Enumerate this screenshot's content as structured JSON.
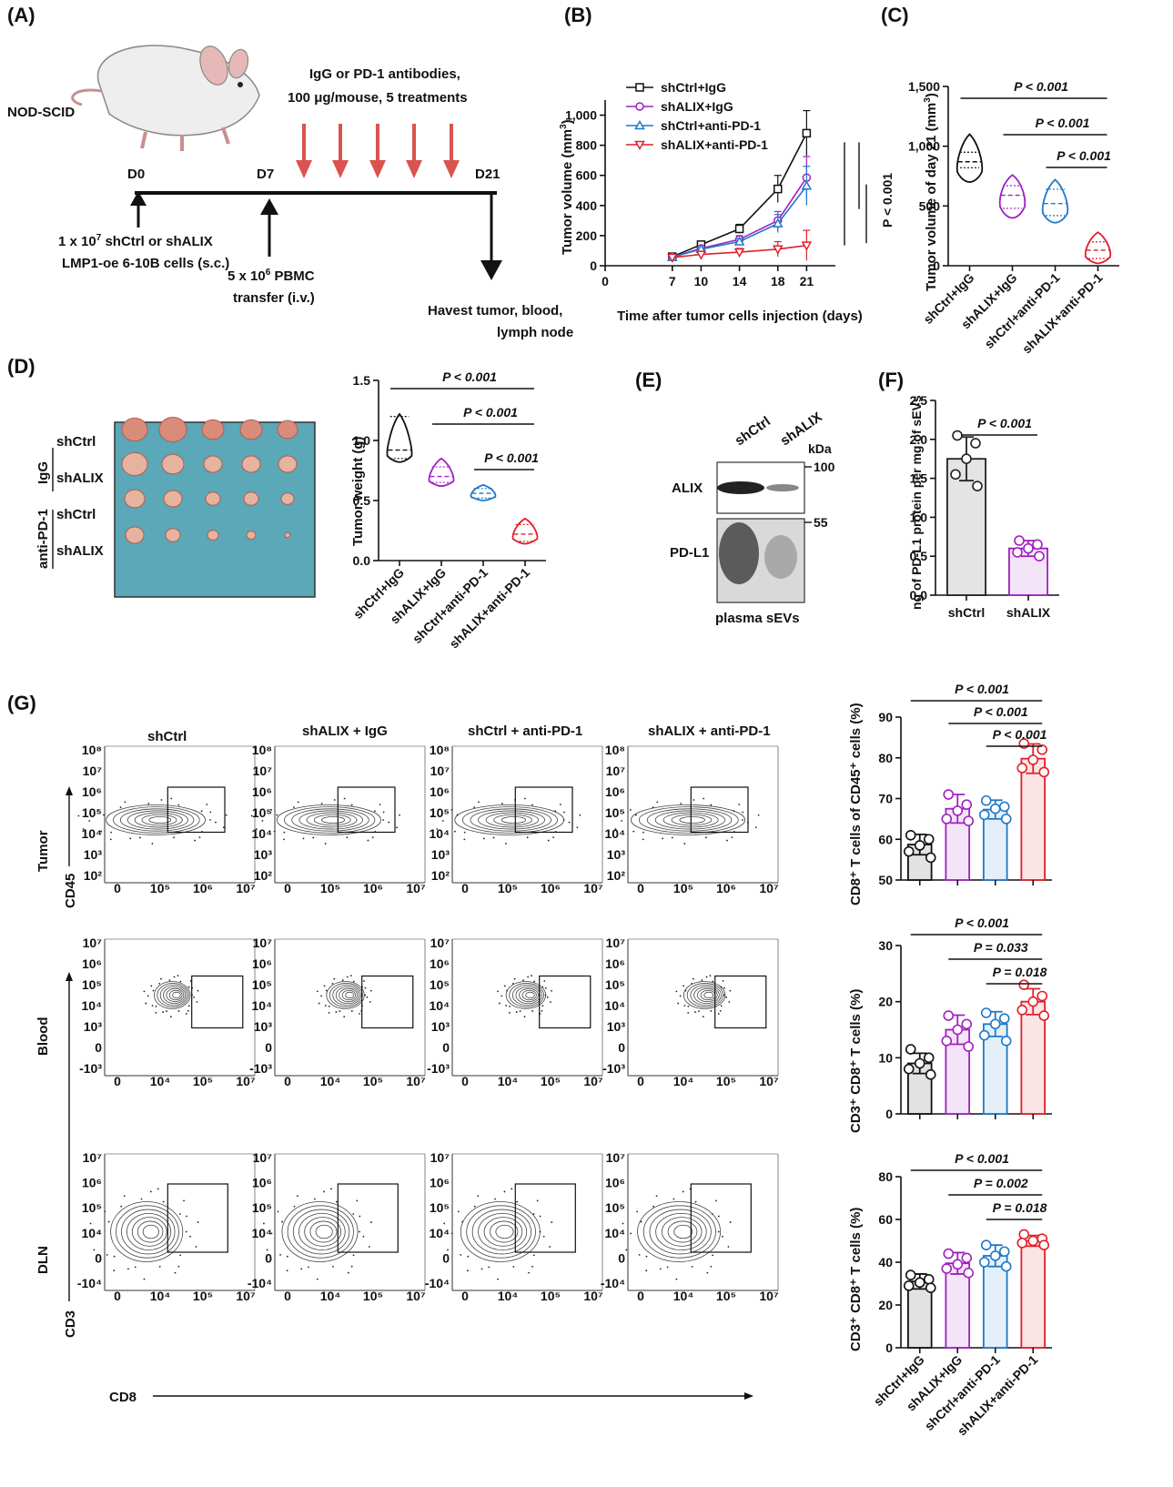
{
  "panels": {
    "A": "(A)",
    "B": "(B)",
    "C": "(C)",
    "D": "(D)",
    "E": "(E)",
    "F": "(F)",
    "G": "(G)"
  },
  "colors": {
    "shCtrl+IgG": "#111111",
    "shALIX+IgG": "#a020c0",
    "shCtrl+anti-PD-1": "#1f78c8",
    "shALIX+anti-PD-1": "#e0202a",
    "treatment_arrow": "#d9534f"
  },
  "schematic": {
    "strain": "NOD-SCID",
    "treatment": [
      "IgG or PD-1 antibodies,",
      "100 μg/mouse, 5 treatments"
    ],
    "days": [
      "D0",
      "D7",
      "D21"
    ],
    "d0_text": [
      "1 x 10",
      "7",
      " shCtrl or shALIX",
      "LMP1-oe 6-10B cells (s.c.)"
    ],
    "d7_text": [
      "5 x 10",
      "6",
      " PBMC",
      "transfer (i.v.)"
    ],
    "d21_text": [
      "Havest tumor, blood,",
      "lymph node"
    ]
  },
  "chart_data": [
    {
      "panel": "B",
      "type": "line",
      "x": [
        7,
        10,
        14,
        18,
        21
      ],
      "xticks": [
        0,
        7,
        10,
        14,
        18,
        21
      ],
      "yticks": [
        "0",
        "200",
        "400",
        "600",
        "800",
        "1,000"
      ],
      "xlim": [
        0,
        24
      ],
      "ylim": [
        0,
        1100
      ],
      "xlabel": "Time  after tumor cells injection (days)",
      "ylabel": "Tumor volume (mm³)",
      "annotation": "P < 0.001",
      "series": [
        {
          "name": "shCtrl+IgG",
          "marker": "square",
          "values": [
            60,
            140,
            245,
            510,
            880
          ],
          "err": [
            5,
            12,
            30,
            90,
            150
          ]
        },
        {
          "name": "shALIX+IgG",
          "marker": "circle",
          "values": [
            58,
            115,
            175,
            300,
            585
          ],
          "err": [
            5,
            10,
            25,
            60,
            140
          ]
        },
        {
          "name": "shCtrl+anti-PD-1",
          "marker": "triangle-up",
          "values": [
            57,
            110,
            160,
            280,
            530
          ],
          "err": [
            5,
            10,
            20,
            60,
            130
          ]
        },
        {
          "name": "shALIX+anti-PD-1",
          "marker": "triangle-down",
          "values": [
            55,
            75,
            90,
            110,
            135
          ],
          "err": [
            5,
            10,
            25,
            50,
            100
          ]
        }
      ]
    },
    {
      "panel": "C",
      "type": "violin",
      "categories": [
        "shCtrl+IgG",
        "shALIX+IgG",
        "shCtrl+anti-PD-1",
        "shALIX+anti-PD-1"
      ],
      "yticks": [
        "0",
        "500",
        "1,000",
        "1,500"
      ],
      "ylim": [
        0,
        1500
      ],
      "ylabel": "Tumor volume of day 21 (mm³)",
      "values": [
        {
          "min": 700,
          "q1": 820,
          "median": 870,
          "q3": 950,
          "max": 1100
        },
        {
          "min": 400,
          "q1": 480,
          "median": 590,
          "q3": 670,
          "max": 760
        },
        {
          "min": 360,
          "q1": 420,
          "median": 520,
          "q3": 640,
          "max": 720
        },
        {
          "min": 20,
          "q1": 60,
          "median": 130,
          "q3": 200,
          "max": 280
        }
      ],
      "comparisons": [
        "P < 0.001",
        "P < 0.001",
        "P < 0.001"
      ]
    },
    {
      "panel": "D",
      "type": "violin",
      "categories": [
        "shCtrl+IgG",
        "shALIX+IgG",
        "shCtrl+anti-PD-1",
        "shALIX+anti-PD-1"
      ],
      "yticks": [
        "0.0",
        "0.5",
        "1.0",
        "1.5"
      ],
      "ylim": [
        0,
        1.5
      ],
      "ylabel": "Tumor weight (g)",
      "values": [
        {
          "min": 0.82,
          "q1": 0.85,
          "median": 0.92,
          "q3": 1.2,
          "max": 1.22
        },
        {
          "min": 0.62,
          "q1": 0.65,
          "median": 0.7,
          "q3": 0.78,
          "max": 0.85
        },
        {
          "min": 0.5,
          "q1": 0.52,
          "median": 0.56,
          "q3": 0.6,
          "max": 0.63
        },
        {
          "min": 0.14,
          "q1": 0.16,
          "median": 0.22,
          "q3": 0.3,
          "max": 0.35
        }
      ],
      "comparisons": [
        "P < 0.001",
        "P < 0.001",
        "P < 0.001"
      ]
    },
    {
      "panel": "F",
      "type": "bar",
      "categories": [
        "shCtrl",
        "shALIX"
      ],
      "values": [
        1.75,
        0.6
      ],
      "err": [
        0.28,
        0.1
      ],
      "points": [
        [
          2.05,
          1.95,
          1.75,
          1.55,
          1.4
        ],
        [
          0.7,
          0.65,
          0.6,
          0.55,
          0.5
        ]
      ],
      "yticks": [
        "0.0",
        "0.5",
        "1.0",
        "1.5",
        "2.0",
        "2.5"
      ],
      "ylim": [
        0,
        2.5
      ],
      "ylabel": "ng of PD-L1 protein per mg of sEVs",
      "comparisons": [
        "P < 0.001"
      ]
    },
    {
      "panel": "G1",
      "type": "bar",
      "categories": [
        "shCtrl+IgG",
        "shALIX+IgG",
        "shCtrl+anti-PD-1",
        "shALIX+anti-PD-1"
      ],
      "values": [
        58.7,
        67.5,
        67.3,
        79.8
      ],
      "err": [
        2.5,
        3.5,
        2.3,
        3.6
      ],
      "points": [
        [
          61,
          60,
          58.5,
          57,
          55.5
        ],
        [
          71,
          68.5,
          67,
          65,
          64.5
        ],
        [
          69.5,
          68,
          67.5,
          66,
          65
        ],
        [
          83.5,
          82,
          79.5,
          77.5,
          76.5
        ]
      ],
      "yticks": [
        "50",
        "60",
        "70",
        "80",
        "90"
      ],
      "ylim": [
        50,
        90
      ],
      "ylabel": "CD8⁺ T cells of CD45⁺ cells (%)",
      "comparisons": [
        "P < 0.001",
        "P < 0.001",
        "P < 0.001"
      ]
    },
    {
      "panel": "G2",
      "type": "bar",
      "categories": [
        "shCtrl+IgG",
        "shALIX+IgG",
        "shCtrl+anti-PD-1",
        "shALIX+anti-PD-1"
      ],
      "values": [
        9.0,
        15.0,
        16.0,
        20.0
      ],
      "err": [
        1.8,
        2.6,
        2.2,
        2.3
      ],
      "points": [
        [
          11.5,
          10,
          9,
          8,
          7
        ],
        [
          17.5,
          16,
          15,
          13,
          12
        ],
        [
          18,
          17,
          16,
          14,
          13
        ],
        [
          23,
          21,
          20,
          18.5,
          17.5
        ]
      ],
      "yticks": [
        "0",
        "10",
        "20",
        "30"
      ],
      "ylim": [
        0,
        30
      ],
      "ylabel": "CD3⁺ CD8⁺ T cells (%)",
      "comparisons": [
        "P < 0.001",
        "P = 0.033",
        "P = 0.018"
      ]
    },
    {
      "panel": "G3",
      "type": "bar",
      "categories": [
        "shCtrl+IgG",
        "shALIX+IgG",
        "shCtrl+anti-PD-1",
        "shALIX+anti-PD-1"
      ],
      "values": [
        31.0,
        39.5,
        43.0,
        50.0
      ],
      "err": [
        3.5,
        5.0,
        5.0,
        2.5
      ],
      "points": [
        [
          34,
          32,
          30.5,
          29,
          28
        ],
        [
          44,
          42,
          39,
          37,
          35
        ],
        [
          48,
          45,
          43,
          40,
          38
        ],
        [
          53,
          51,
          50,
          49,
          48
        ]
      ],
      "yticks": [
        "0",
        "20",
        "40",
        "60",
        "80"
      ],
      "ylim": [
        0,
        80
      ],
      "ylabel": "CD3⁺ CD8⁺ T cells (%)",
      "comparisons": [
        "P < 0.001",
        "P = 0.002",
        "P = 0.018"
      ]
    }
  ],
  "photo": {
    "group_labels": [
      "IgG",
      "anti-PD-1"
    ],
    "row_labels": [
      "shCtrl",
      "shALIX",
      "shCtrl",
      "shALIX"
    ]
  },
  "blot": {
    "lanes": [
      "shCtrl",
      "shALIX"
    ],
    "unit": "kDa",
    "markers": [
      "100",
      "55"
    ],
    "proteins": [
      "ALIX",
      "PD-L1"
    ],
    "caption": "plasma sEVs"
  },
  "flow": {
    "columns": [
      "shCtrl",
      "shALIX + IgG",
      "shCtrl + anti-PD-1",
      "shALIX + anti-PD-1"
    ],
    "rows": [
      "Tumor",
      "Blood",
      "DLN"
    ],
    "y_axes": [
      "CD45",
      "CD3"
    ],
    "x_axis": "CD8",
    "tumor_y_ticks": [
      "10⁸",
      "10⁷",
      "10⁶",
      "10⁵",
      "10⁴",
      "10³",
      "10²"
    ],
    "tumor_x_ticks": [
      "0",
      "10⁵",
      "10⁶",
      "10⁷"
    ],
    "other_y_ticks": [
      "10⁷",
      "10⁶",
      "10⁵",
      "10⁴",
      "10³",
      "0",
      "-10³"
    ],
    "other_x_ticks": [
      "0",
      "10⁴",
      "10⁵",
      "10⁷"
    ],
    "dln_y_ticks": [
      "10⁷",
      "10⁶",
      "10⁵",
      "10⁴",
      "0",
      "-10⁴"
    ]
  }
}
